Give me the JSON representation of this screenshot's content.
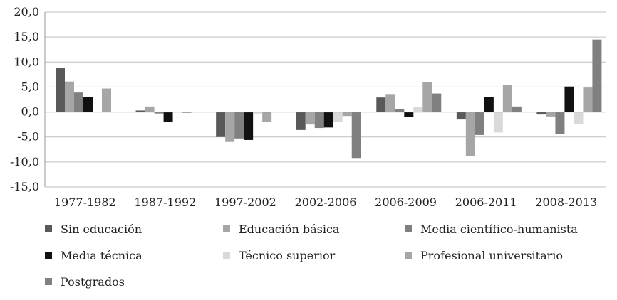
{
  "chart_data": {
    "type": "bar",
    "title": "",
    "xlabel": "",
    "ylabel": "",
    "ylim": [
      -15,
      20
    ],
    "yticks": [
      20,
      15,
      10,
      5,
      0,
      -5,
      -10,
      -15
    ],
    "ytick_labels": [
      "20,0",
      "15,0",
      "10,0",
      "5,0",
      "0,0",
      "-5,0",
      "-10,0",
      "-15,0"
    ],
    "grid": true,
    "legend_position": "bottom",
    "categories": [
      "1977-1982",
      "1987-1992",
      "1997-2002",
      "2002-2006",
      "2006-2009",
      "2006-2011",
      "2008-2013"
    ],
    "series": [
      {
        "name": "Sin educación",
        "color": "#595959",
        "values": [
          8.8,
          0.3,
          -5.0,
          -3.6,
          2.9,
          -1.5,
          -0.5
        ]
      },
      {
        "name": "Educación básica",
        "color": "#a6a6a6",
        "values": [
          6.1,
          1.1,
          -6.0,
          -2.5,
          3.6,
          -8.8,
          -0.9
        ]
      },
      {
        "name": "Media científico-humanista",
        "color": "#808080",
        "values": [
          3.9,
          -0.3,
          -5.3,
          -3.2,
          0.6,
          -4.6,
          -4.4
        ]
      },
      {
        "name": "Media técnica",
        "color": "#111111",
        "values": [
          3.0,
          -2.0,
          -5.6,
          -3.1,
          -1.0,
          3.0,
          5.1
        ]
      },
      {
        "name": "Técnico superior",
        "color": "#d9d9d9",
        "values": [
          0.0,
          0.0,
          -0.3,
          -2.0,
          1.0,
          -4.1,
          -2.4
        ]
      },
      {
        "name": "Profesional universitario",
        "color": "#a6a6a6",
        "values": [
          4.7,
          -0.2,
          -2.0,
          -0.8,
          6.0,
          5.4,
          4.9
        ]
      },
      {
        "name": "Postgrados",
        "color": "#808080",
        "values": [
          0.0,
          0.0,
          0.0,
          -9.2,
          3.7,
          1.1,
          14.5
        ]
      }
    ]
  }
}
